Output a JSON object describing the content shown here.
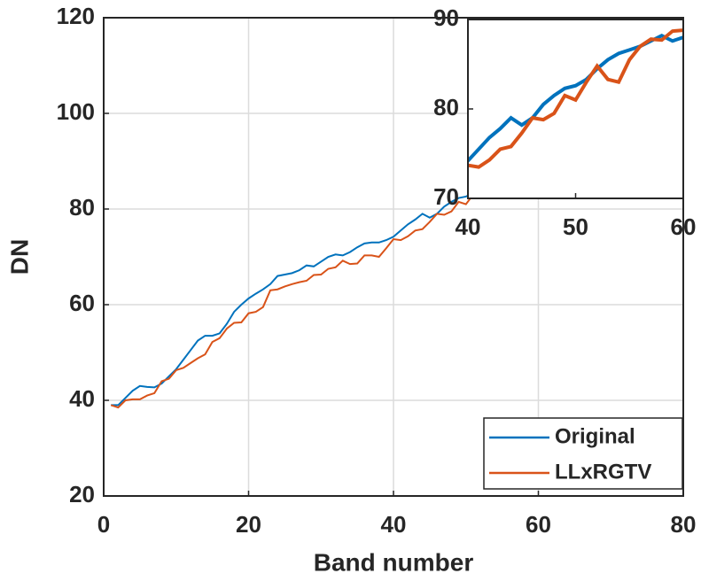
{
  "chart_data": {
    "type": "line",
    "xlabel": "Band number",
    "ylabel": "DN",
    "x": [
      1,
      2,
      3,
      4,
      5,
      6,
      7,
      8,
      9,
      10,
      11,
      12,
      13,
      14,
      15,
      16,
      17,
      18,
      19,
      20,
      21,
      22,
      23,
      24,
      25,
      26,
      27,
      28,
      29,
      30,
      31,
      32,
      33,
      34,
      35,
      36,
      37,
      38,
      39,
      40,
      41,
      42,
      43,
      44,
      45,
      46,
      47,
      48,
      49,
      50,
      51,
      52,
      53,
      54,
      55,
      56,
      57,
      58,
      59,
      60
    ],
    "series": [
      {
        "name": "Original",
        "color": "#0072bd",
        "values": [
          39,
          39,
          40.5,
          42,
          43,
          42.8,
          42.7,
          43.5,
          45,
          46.5,
          48.5,
          50.5,
          52.5,
          53.5,
          53.5,
          54,
          56,
          58.5,
          60,
          61.3,
          62.3,
          63.2,
          64.3,
          66,
          66.3,
          66.6,
          67.2,
          68.2,
          68,
          69,
          70,
          70.5,
          70.3,
          71,
          72,
          72.8,
          73,
          73,
          73.5,
          74.2,
          75.5,
          76.8,
          77.8,
          79,
          78.2,
          79,
          80.5,
          81.5,
          82.3,
          82.6,
          83.3,
          84.5,
          85.5,
          86.2,
          86.6,
          87,
          87.6,
          88.2,
          87.6,
          88
        ]
      },
      {
        "name": "LLxRGTV",
        "color": "#d95319",
        "values": [
          39,
          38.5,
          40,
          40.2,
          40.2,
          41,
          41.5,
          44,
          44.5,
          46.3,
          46.8,
          47.8,
          48.8,
          49.6,
          52.2,
          53,
          55,
          56.2,
          56.3,
          58.2,
          58.5,
          59.5,
          63,
          63.2,
          63.8,
          64.3,
          64.7,
          65,
          66.2,
          66.3,
          67.5,
          67.8,
          69.2,
          68.5,
          68.6,
          70.3,
          70.3,
          70,
          71.8,
          73.7,
          73.5,
          74.3,
          75.5,
          75.8,
          77.3,
          79,
          78.8,
          79.5,
          81.5,
          81,
          83,
          84.8,
          83.3,
          83,
          85.5,
          87,
          87.8,
          87.7,
          88.7,
          88.8
        ]
      }
    ],
    "xlim": [
      0,
      80
    ],
    "ylim": [
      20,
      120
    ],
    "xticks": [
      0,
      20,
      40,
      60,
      80
    ],
    "yticks": [
      20,
      40,
      60,
      80,
      100,
      120
    ],
    "grid": true,
    "legend": "lower right",
    "inset": {
      "xlim": [
        40,
        60
      ],
      "ylim": [
        70,
        90
      ],
      "xticks": [
        40,
        50,
        60
      ],
      "yticks": [
        70,
        80,
        90
      ]
    }
  }
}
